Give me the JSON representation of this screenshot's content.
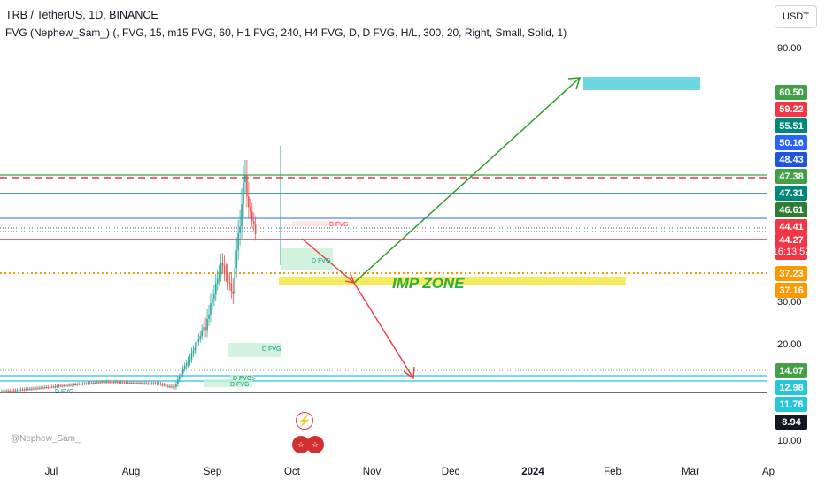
{
  "header": {
    "symbol_line": "TRB / TetherUS, 1D, BINANCE",
    "indicator_line": "FVG (Nephew_Sam_) (, FVG, 15, m15 FVG, 60, H1 FVG, 240, H4 FVG, D, D FVG, H/L, 300, 20, Right, Small, Solid, 1)"
  },
  "price_scale": {
    "currency": "USDT",
    "ticks": [
      "90.00",
      "30.00",
      "20.00",
      "10.00"
    ],
    "tags": [
      {
        "value": "60.50",
        "color": "#43a047"
      },
      {
        "value": "59.22",
        "color": "#f23645"
      },
      {
        "value": "55.51",
        "color": "#00897b"
      },
      {
        "value": "50.16",
        "color": "#2962ff"
      },
      {
        "value": "48.43",
        "color": "#1e53e5"
      },
      {
        "value": "47.38",
        "color": "#43a047"
      },
      {
        "value": "47.31",
        "color": "#00897b"
      },
      {
        "value": "46.61",
        "color": "#2e7d32"
      },
      {
        "value": "44.41",
        "color": "#f23645"
      },
      {
        "value": "44.27",
        "countdown": "16:13:52",
        "color": "#f23645"
      },
      {
        "value": "37.23",
        "color": "#ff9800"
      },
      {
        "value": "37.16",
        "color": "#ff9800"
      },
      {
        "value": "14.07",
        "color": "#43a047"
      },
      {
        "value": "12.98",
        "color": "#26c6da"
      },
      {
        "value": "11.76",
        "color": "#26c6da"
      },
      {
        "value": "8.94",
        "color": "#131722"
      }
    ]
  },
  "time_scale": {
    "labels": [
      {
        "text": "Jul",
        "bold": false
      },
      {
        "text": "Aug",
        "bold": false
      },
      {
        "text": "Sep",
        "bold": false
      },
      {
        "text": "Oct",
        "bold": false
      },
      {
        "text": "Nov",
        "bold": false
      },
      {
        "text": "Dec",
        "bold": false
      },
      {
        "text": "2024",
        "bold": true
      },
      {
        "text": "Feb",
        "bold": false
      },
      {
        "text": "Mar",
        "bold": false
      },
      {
        "text": "Ap",
        "bold": false
      }
    ]
  },
  "annotations": {
    "imp_zone": "IMP ZONE",
    "fvg_labels": [
      "D FVG",
      "D FVG",
      "D FVG",
      "D FVG",
      "D FVGs",
      "D FVG"
    ],
    "watermark": "@Nephew_Sam_"
  },
  "icons": {
    "events": [
      "lightning-icon",
      "us-flag-icon",
      "us-flag-icon"
    ]
  },
  "colors": {
    "up": "#26a69a",
    "down": "#ef5350",
    "up_arrow": "#2e9d2e",
    "down_arrow": "#f23645",
    "imp_zone_fill": "#f5e642",
    "target_box": "#6fd7e0"
  }
}
